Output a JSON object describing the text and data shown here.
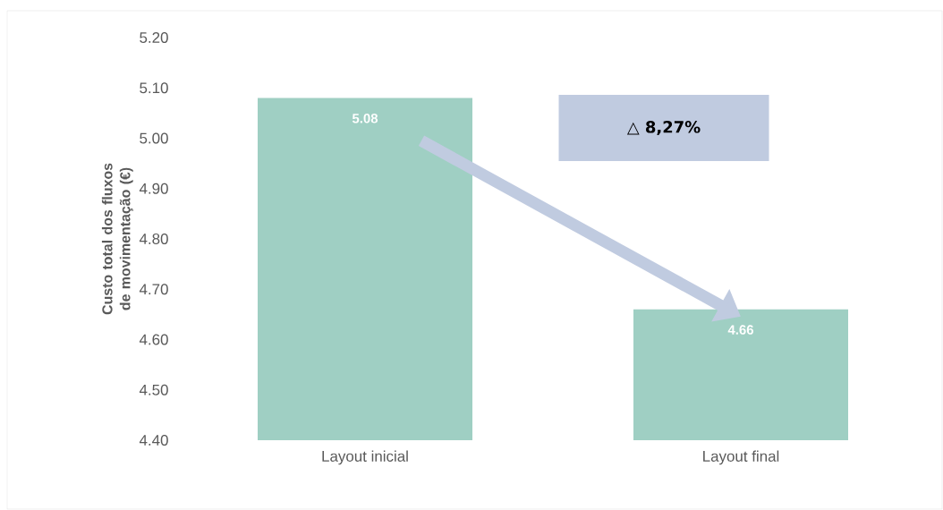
{
  "chart_data": {
    "type": "bar",
    "ylabel": "Custo total dos fluxos de movimentação (€)",
    "categories": [
      "Layout inicial",
      "Layout final"
    ],
    "values": [
      5.08,
      4.66
    ],
    "color": "#9fcfc3",
    "ylim": [
      4.4,
      5.2
    ],
    "yticks": [
      {
        "value": 4.4,
        "label": "4.40"
      },
      {
        "value": 4.5,
        "label": "4.50"
      },
      {
        "value": 4.6,
        "label": "4.60"
      },
      {
        "value": 4.7,
        "label": "4.70"
      },
      {
        "value": 4.8,
        "label": "4.80"
      },
      {
        "value": 4.9,
        "label": "4.90"
      },
      {
        "value": 5.0,
        "label": "5.00"
      },
      {
        "value": 5.1,
        "label": "5.10"
      },
      {
        "value": 5.2,
        "label": "5.20"
      }
    ],
    "data_labels": true,
    "grid": false,
    "annotations": [
      "△ 8,27%"
    ]
  }
}
